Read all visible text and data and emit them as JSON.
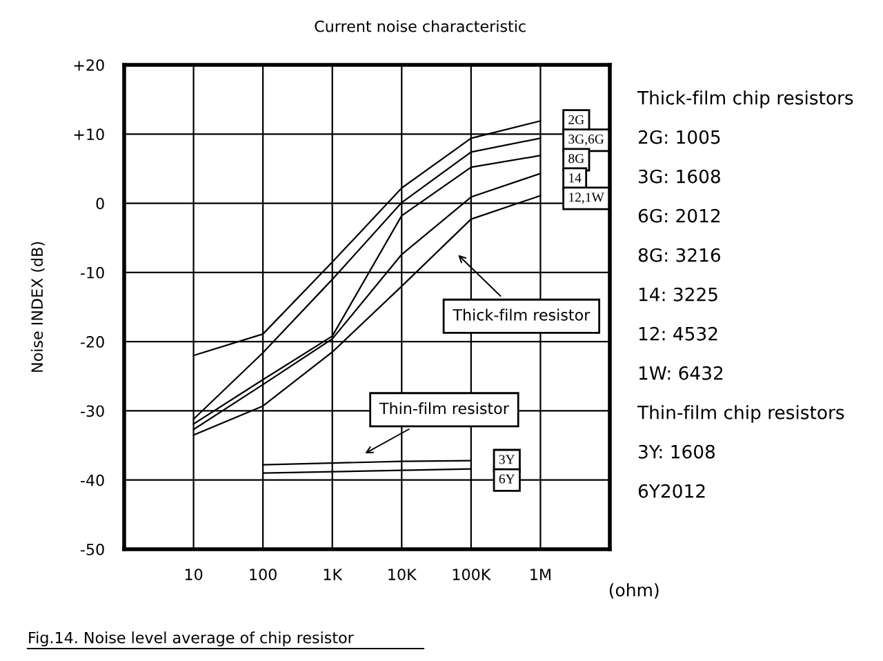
{
  "chart_data": {
    "type": "line",
    "title": "Current noise characteristic",
    "xlabel": "(ohm)",
    "ylabel": "Noise INDEX (dB)",
    "log": "x",
    "xlim": [
      1,
      10000000
    ],
    "xticks": [
      {
        "value": 10,
        "label": "10"
      },
      {
        "value": 100,
        "label": "100"
      },
      {
        "value": 1000,
        "label": "1K"
      },
      {
        "value": 10000,
        "label": "10K"
      },
      {
        "value": 100000,
        "label": "100K"
      },
      {
        "value": 1000000,
        "label": "1M"
      }
    ],
    "ylim": [
      -50,
      20
    ],
    "yticks": [
      {
        "value": -50,
        "label": "-50"
      },
      {
        "value": -40,
        "label": "-40"
      },
      {
        "value": -30,
        "label": "-30"
      },
      {
        "value": -20,
        "label": "-20"
      },
      {
        "value": -10,
        "label": "-10"
      },
      0,
      {
        "value": 10,
        "label": "+10"
      },
      {
        "value": 20,
        "label": "+20"
      }
    ],
    "grid": true,
    "legend": "right",
    "marker": "none",
    "line_style": "solid",
    "series": [
      {
        "name": "2G",
        "color": "#000000",
        "x": [
          10,
          100,
          1000,
          10000,
          100000,
          1000000
        ],
        "values": [
          -22,
          -18.9,
          -8.5,
          2.2,
          9.4,
          11.9
        ]
      },
      {
        "name": "3G,6G",
        "color": "#000000",
        "x": [
          10,
          100,
          1000,
          10000,
          100000,
          1000000
        ],
        "values": [
          -31.2,
          -21.6,
          -11,
          0.1,
          7.4,
          9.4
        ]
      },
      {
        "name": "8G",
        "color": "#000000",
        "x": [
          10,
          100,
          1000,
          10000,
          100000,
          1000000
        ],
        "values": [
          -31.9,
          -25.5,
          -19.2,
          -1.8,
          5.2,
          6.9
        ]
      },
      {
        "name": "14",
        "color": "#000000",
        "x": [
          10,
          100,
          1000,
          10000,
          100000,
          1000000
        ],
        "values": [
          -32.7,
          -26.2,
          -19.6,
          -7.4,
          0.9,
          4.3
        ]
      },
      {
        "name": "12,1W",
        "color": "#000000",
        "x": [
          10,
          100,
          1000,
          10000,
          100000,
          1000000
        ],
        "values": [
          -33.5,
          -29.3,
          -21.5,
          -12,
          -2.3,
          1.1
        ]
      },
      {
        "name": "3Y",
        "color": "#000000",
        "x": [
          100,
          10000,
          100000
        ],
        "values": [
          -37.8,
          -37.3,
          -37.2
        ]
      },
      {
        "name": "6Y",
        "color": "#000000",
        "x": [
          100,
          10000,
          100000
        ],
        "values": [
          -39.0,
          -38.6,
          -38.4
        ]
      }
    ],
    "annotations": [
      "Thick-film resistor",
      "Thin-film resistor",
      "Thick-film chip resistors",
      "2G: 1005",
      "3G: 1608",
      "6G: 2012",
      "8G: 3216",
      "14: 3225",
      "12: 4532",
      "1W: 6432",
      "Thin-film chip resistors",
      "3Y: 1608",
      "6Y2012",
      "Fig.14. Noise level average of chip resistor"
    ]
  }
}
